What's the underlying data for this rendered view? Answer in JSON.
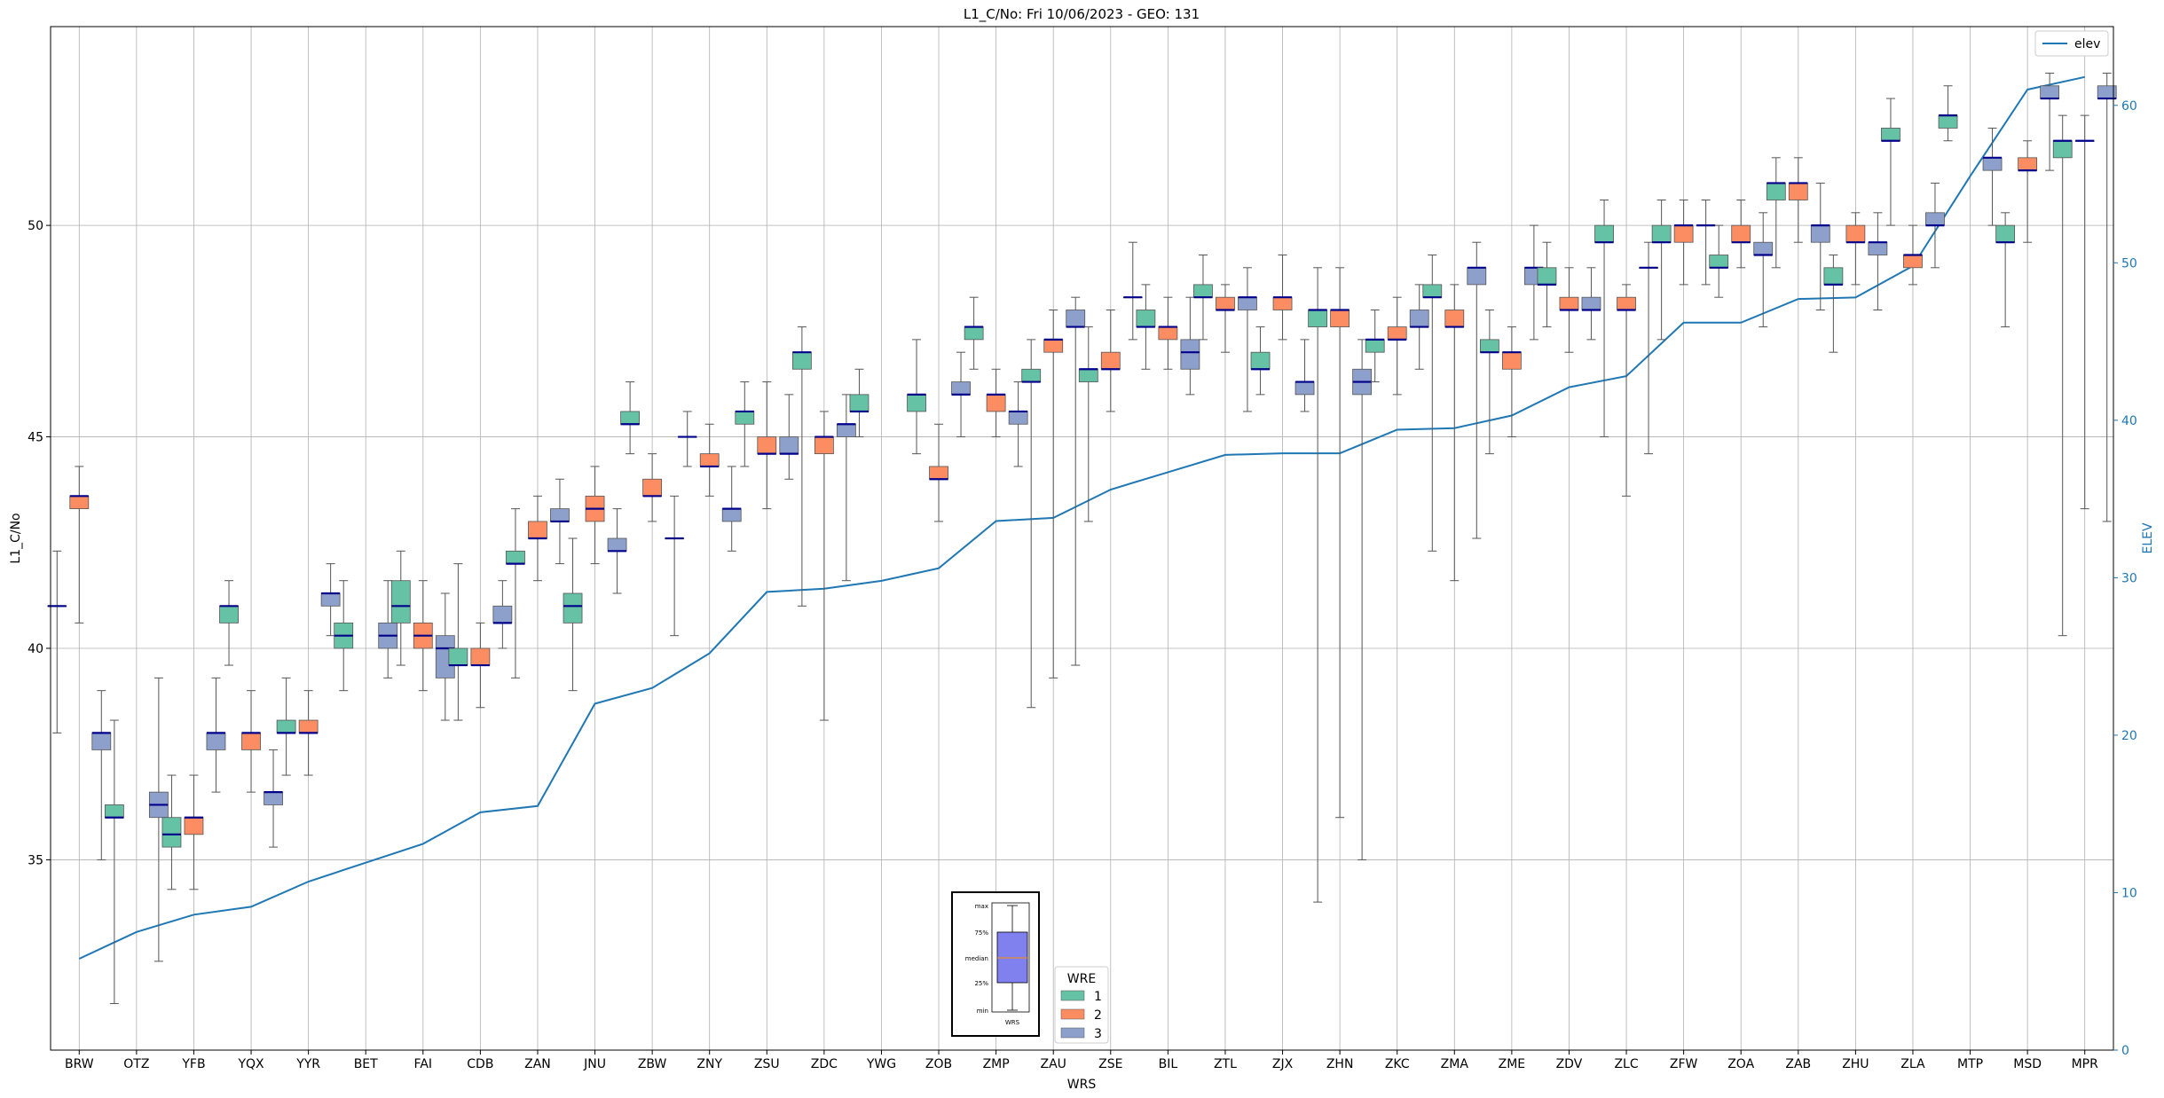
{
  "chart_data": {
    "type": "box",
    "title": "L1_C/No: Fri 10/06/2023 - GEO: 131",
    "xlabel": "WRS",
    "ylabel": "L1_C/No",
    "y2label": "ELEV",
    "ylim": [
      30.5,
      54.7
    ],
    "y2lim": [
      0,
      65
    ],
    "yticks": [
      35,
      40,
      45,
      50
    ],
    "y2ticks": [
      0,
      10,
      20,
      30,
      40,
      50,
      60
    ],
    "grid": true,
    "legend_placement": "top-right",
    "categories": [
      "BRW",
      "OTZ",
      "YFB",
      "YQX",
      "YYR",
      "BET",
      "FAI",
      "CDB",
      "ZAN",
      "JNU",
      "ZBW",
      "ZNY",
      "ZSU",
      "ZDC",
      "YWG",
      "ZOB",
      "ZMP",
      "ZAU",
      "ZSE",
      "BIL",
      "ZTL",
      "ZJX",
      "ZHN",
      "ZKC",
      "ZMA",
      "ZME",
      "ZDV",
      "ZLC",
      "ZFW",
      "ZOA",
      "ZAB",
      "ZHU",
      "ZLA",
      "MTP",
      "MSD",
      "MPR"
    ],
    "colors": {
      "1": "#66c2a5",
      "2": "#fc8d62",
      "3": "#8da0cb",
      "median": "#00008b",
      "elev": "#1f77b4",
      "whisker": "#555555"
    },
    "wre_legend": {
      "title": "WRE",
      "entries": [
        "1",
        "2",
        "3"
      ]
    },
    "elev_legend": {
      "entries": [
        "elev"
      ]
    },
    "inset": {
      "labels": [
        "max",
        "75%",
        "median",
        "25%",
        "min"
      ],
      "xlabel": "WRS"
    },
    "elev": [
      5.8,
      7.5,
      8.6,
      9.1,
      10.7,
      11.9,
      13.1,
      15.1,
      15.5,
      22.0,
      23.0,
      25.2,
      29.1,
      29.3,
      29.8,
      30.6,
      33.6,
      33.8,
      35.6,
      36.7,
      37.8,
      37.9,
      37.9,
      39.4,
      39.5,
      40.3,
      42.1,
      42.8,
      46.2,
      46.2,
      47.7,
      47.8,
      49.8,
      55.5,
      61.0,
      61.8
    ],
    "boxes": [
      {
        "cat": "BRW",
        "wre": 1,
        "min": 38.0,
        "q1": 41.0,
        "median": 41.0,
        "q3": 41.0,
        "max": 42.3
      },
      {
        "cat": "BRW",
        "wre": 2,
        "min": 40.6,
        "q1": 43.3,
        "median": 43.6,
        "q3": 43.6,
        "max": 44.3
      },
      {
        "cat": "BRW",
        "wre": 3,
        "min": 35.0,
        "q1": 37.6,
        "median": 38.0,
        "q3": 38.0,
        "max": 39.0
      },
      {
        "cat": "OTZ",
        "wre": 1,
        "min": 31.6,
        "q1": 36.0,
        "median": 36.0,
        "q3": 36.3,
        "max": 38.3
      },
      {
        "cat": "OTZ",
        "wre": 3,
        "min": 32.6,
        "q1": 36.0,
        "median": 36.3,
        "q3": 36.6,
        "max": 39.3
      },
      {
        "cat": "YFB",
        "wre": 1,
        "min": 34.3,
        "q1": 35.3,
        "median": 35.6,
        "q3": 36.0,
        "max": 37.0
      },
      {
        "cat": "YFB",
        "wre": 2,
        "min": 34.3,
        "q1": 35.6,
        "median": 36.0,
        "q3": 36.0,
        "max": 37.0
      },
      {
        "cat": "YFB",
        "wre": 3,
        "min": 36.6,
        "q1": 37.6,
        "median": 38.0,
        "q3": 38.0,
        "max": 39.3
      },
      {
        "cat": "YQX",
        "wre": 1,
        "min": 39.6,
        "q1": 40.6,
        "median": 41.0,
        "q3": 41.0,
        "max": 41.6
      },
      {
        "cat": "YQX",
        "wre": 2,
        "min": 36.6,
        "q1": 37.6,
        "median": 38.0,
        "q3": 38.0,
        "max": 39.0
      },
      {
        "cat": "YQX",
        "wre": 3,
        "min": 35.3,
        "q1": 36.3,
        "median": 36.6,
        "q3": 36.6,
        "max": 37.6
      },
      {
        "cat": "YYR",
        "wre": 1,
        "min": 37.0,
        "q1": 38.0,
        "median": 38.0,
        "q3": 38.3,
        "max": 39.3
      },
      {
        "cat": "YYR",
        "wre": 2,
        "min": 37.0,
        "q1": 38.0,
        "median": 38.0,
        "q3": 38.3,
        "max": 39.0
      },
      {
        "cat": "YYR",
        "wre": 3,
        "min": 40.3,
        "q1": 41.0,
        "median": 41.3,
        "q3": 41.3,
        "max": 42.0
      },
      {
        "cat": "BET",
        "wre": 1,
        "min": 39.0,
        "q1": 40.0,
        "median": 40.3,
        "q3": 40.6,
        "max": 41.6
      },
      {
        "cat": "BET",
        "wre": 3,
        "min": 39.3,
        "q1": 40.0,
        "median": 40.3,
        "q3": 40.6,
        "max": 41.6
      },
      {
        "cat": "FAI",
        "wre": 1,
        "min": 39.6,
        "q1": 40.6,
        "median": 41.0,
        "q3": 41.6,
        "max": 42.3
      },
      {
        "cat": "FAI",
        "wre": 2,
        "min": 39.0,
        "q1": 40.0,
        "median": 40.3,
        "q3": 40.6,
        "max": 41.6
      },
      {
        "cat": "FAI",
        "wre": 3,
        "min": 38.3,
        "q1": 39.3,
        "median": 40.0,
        "q3": 40.3,
        "max": 41.3
      },
      {
        "cat": "CDB",
        "wre": 1,
        "min": 38.3,
        "q1": 39.6,
        "median": 39.6,
        "q3": 40.0,
        "max": 42.0
      },
      {
        "cat": "CDB",
        "wre": 2,
        "min": 38.6,
        "q1": 39.6,
        "median": 39.6,
        "q3": 40.0,
        "max": 40.6
      },
      {
        "cat": "CDB",
        "wre": 3,
        "min": 40.0,
        "q1": 40.6,
        "median": 40.6,
        "q3": 41.0,
        "max": 41.6
      },
      {
        "cat": "ZAN",
        "wre": 1,
        "min": 39.3,
        "q1": 42.0,
        "median": 42.0,
        "q3": 42.3,
        "max": 43.3
      },
      {
        "cat": "ZAN",
        "wre": 2,
        "min": 41.6,
        "q1": 42.6,
        "median": 42.6,
        "q3": 43.0,
        "max": 43.6
      },
      {
        "cat": "ZAN",
        "wre": 3,
        "min": 42.0,
        "q1": 43.0,
        "median": 43.0,
        "q3": 43.3,
        "max": 44.0
      },
      {
        "cat": "JNU",
        "wre": 1,
        "min": 39.0,
        "q1": 40.6,
        "median": 41.0,
        "q3": 41.3,
        "max": 42.6
      },
      {
        "cat": "JNU",
        "wre": 2,
        "min": 42.0,
        "q1": 43.0,
        "median": 43.3,
        "q3": 43.6,
        "max": 44.3
      },
      {
        "cat": "JNU",
        "wre": 3,
        "min": 41.3,
        "q1": 42.3,
        "median": 42.3,
        "q3": 42.6,
        "max": 43.3
      },
      {
        "cat": "ZBW",
        "wre": 1,
        "min": 44.6,
        "q1": 45.3,
        "median": 45.3,
        "q3": 45.6,
        "max": 46.3
      },
      {
        "cat": "ZBW",
        "wre": 2,
        "min": 43.0,
        "q1": 43.6,
        "median": 43.6,
        "q3": 44.0,
        "max": 44.6
      },
      {
        "cat": "ZBW",
        "wre": 3,
        "min": 40.3,
        "q1": 42.6,
        "median": 42.6,
        "q3": 42.6,
        "max": 43.6
      },
      {
        "cat": "ZNY",
        "wre": 1,
        "min": 44.3,
        "q1": 45.0,
        "median": 45.0,
        "q3": 45.0,
        "max": 45.6
      },
      {
        "cat": "ZNY",
        "wre": 2,
        "min": 43.6,
        "q1": 44.3,
        "median": 44.3,
        "q3": 44.6,
        "max": 45.3
      },
      {
        "cat": "ZNY",
        "wre": 3,
        "min": 42.3,
        "q1": 43.0,
        "median": 43.3,
        "q3": 43.3,
        "max": 44.3
      },
      {
        "cat": "ZSU",
        "wre": 1,
        "min": 44.3,
        "q1": 45.3,
        "median": 45.6,
        "q3": 45.6,
        "max": 46.3
      },
      {
        "cat": "ZSU",
        "wre": 2,
        "min": 43.3,
        "q1": 44.6,
        "median": 44.6,
        "q3": 45.0,
        "max": 46.3
      },
      {
        "cat": "ZSU",
        "wre": 3,
        "min": 44.0,
        "q1": 44.6,
        "median": 44.6,
        "q3": 45.0,
        "max": 46.0
      },
      {
        "cat": "ZDC",
        "wre": 1,
        "min": 41.0,
        "q1": 46.6,
        "median": 47.0,
        "q3": 47.0,
        "max": 47.6
      },
      {
        "cat": "ZDC",
        "wre": 2,
        "min": 38.3,
        "q1": 44.6,
        "median": 45.0,
        "q3": 45.0,
        "max": 45.6
      },
      {
        "cat": "ZDC",
        "wre": 3,
        "min": 41.6,
        "q1": 45.0,
        "median": 45.3,
        "q3": 45.3,
        "max": 46.0
      },
      {
        "cat": "YWG",
        "wre": 1,
        "min": 45.0,
        "q1": 45.6,
        "median": 45.6,
        "q3": 46.0,
        "max": 46.6
      },
      {
        "cat": "ZOB",
        "wre": 1,
        "min": 44.6,
        "q1": 45.6,
        "median": 46.0,
        "q3": 46.0,
        "max": 47.3
      },
      {
        "cat": "ZOB",
        "wre": 2,
        "min": 43.0,
        "q1": 44.0,
        "median": 44.0,
        "q3": 44.3,
        "max": 45.3
      },
      {
        "cat": "ZOB",
        "wre": 3,
        "min": 45.0,
        "q1": 46.0,
        "median": 46.0,
        "q3": 46.3,
        "max": 47.0
      },
      {
        "cat": "ZMP",
        "wre": 1,
        "min": 46.6,
        "q1": 47.3,
        "median": 47.6,
        "q3": 47.6,
        "max": 48.3
      },
      {
        "cat": "ZMP",
        "wre": 2,
        "min": 45.0,
        "q1": 45.6,
        "median": 46.0,
        "q3": 46.0,
        "max": 46.6
      },
      {
        "cat": "ZMP",
        "wre": 3,
        "min": 44.3,
        "q1": 45.3,
        "median": 45.6,
        "q3": 45.6,
        "max": 46.3
      },
      {
        "cat": "ZAU",
        "wre": 1,
        "min": 38.6,
        "q1": 46.3,
        "median": 46.3,
        "q3": 46.6,
        "max": 47.3
      },
      {
        "cat": "ZAU",
        "wre": 2,
        "min": 39.3,
        "q1": 47.0,
        "median": 47.3,
        "q3": 47.3,
        "max": 48.0
      },
      {
        "cat": "ZAU",
        "wre": 3,
        "min": 39.6,
        "q1": 47.6,
        "median": 47.6,
        "q3": 48.0,
        "max": 48.3
      },
      {
        "cat": "ZSE",
        "wre": 1,
        "min": 43.0,
        "q1": 46.3,
        "median": 46.6,
        "q3": 46.6,
        "max": 47.6
      },
      {
        "cat": "ZSE",
        "wre": 2,
        "min": 45.6,
        "q1": 46.6,
        "median": 46.6,
        "q3": 47.0,
        "max": 48.0
      },
      {
        "cat": "ZSE",
        "wre": 3,
        "min": 47.3,
        "q1": 48.3,
        "median": 48.3,
        "q3": 48.3,
        "max": 49.6
      },
      {
        "cat": "BIL",
        "wre": 1,
        "min": 46.6,
        "q1": 47.6,
        "median": 47.6,
        "q3": 48.0,
        "max": 48.6
      },
      {
        "cat": "BIL",
        "wre": 2,
        "min": 46.6,
        "q1": 47.3,
        "median": 47.6,
        "q3": 47.6,
        "max": 48.3
      },
      {
        "cat": "BIL",
        "wre": 3,
        "min": 46.0,
        "q1": 46.6,
        "median": 47.0,
        "q3": 47.3,
        "max": 48.3
      },
      {
        "cat": "ZTL",
        "wre": 1,
        "min": 47.3,
        "q1": 48.3,
        "median": 48.3,
        "q3": 48.6,
        "max": 49.3
      },
      {
        "cat": "ZTL",
        "wre": 2,
        "min": 47.0,
        "q1": 48.0,
        "median": 48.0,
        "q3": 48.3,
        "max": 48.6
      },
      {
        "cat": "ZTL",
        "wre": 3,
        "min": 45.6,
        "q1": 48.0,
        "median": 48.3,
        "q3": 48.3,
        "max": 49.0
      },
      {
        "cat": "ZJX",
        "wre": 1,
        "min": 46.0,
        "q1": 46.6,
        "median": 46.6,
        "q3": 47.0,
        "max": 47.6
      },
      {
        "cat": "ZJX",
        "wre": 2,
        "min": 47.3,
        "q1": 48.0,
        "median": 48.3,
        "q3": 48.3,
        "max": 49.3
      },
      {
        "cat": "ZJX",
        "wre": 3,
        "min": 45.6,
        "q1": 46.0,
        "median": 46.3,
        "q3": 46.3,
        "max": 47.3
      },
      {
        "cat": "ZHN",
        "wre": 1,
        "min": 34.0,
        "q1": 47.6,
        "median": 48.0,
        "q3": 48.0,
        "max": 49.0
      },
      {
        "cat": "ZHN",
        "wre": 2,
        "min": 36.0,
        "q1": 47.6,
        "median": 48.0,
        "q3": 48.0,
        "max": 49.0
      },
      {
        "cat": "ZHN",
        "wre": 3,
        "min": 35.0,
        "q1": 46.0,
        "median": 46.3,
        "q3": 46.6,
        "max": 47.3
      },
      {
        "cat": "ZKC",
        "wre": 1,
        "min": 46.3,
        "q1": 47.0,
        "median": 47.3,
        "q3": 47.3,
        "max": 48.0
      },
      {
        "cat": "ZKC",
        "wre": 2,
        "min": 46.0,
        "q1": 47.3,
        "median": 47.3,
        "q3": 47.6,
        "max": 48.3
      },
      {
        "cat": "ZKC",
        "wre": 3,
        "min": 46.6,
        "q1": 47.6,
        "median": 47.6,
        "q3": 48.0,
        "max": 48.6
      },
      {
        "cat": "ZMA",
        "wre": 1,
        "min": 42.3,
        "q1": 48.3,
        "median": 48.3,
        "q3": 48.6,
        "max": 49.3
      },
      {
        "cat": "ZMA",
        "wre": 2,
        "min": 41.6,
        "q1": 47.6,
        "median": 47.6,
        "q3": 48.0,
        "max": 48.6
      },
      {
        "cat": "ZMA",
        "wre": 3,
        "min": 42.6,
        "q1": 48.6,
        "median": 49.0,
        "q3": 49.0,
        "max": 49.6
      },
      {
        "cat": "ZME",
        "wre": 1,
        "min": 44.6,
        "q1": 47.0,
        "median": 47.0,
        "q3": 47.3,
        "max": 48.0
      },
      {
        "cat": "ZME",
        "wre": 2,
        "min": 45.0,
        "q1": 46.6,
        "median": 47.0,
        "q3": 47.0,
        "max": 47.6
      },
      {
        "cat": "ZME",
        "wre": 3,
        "min": 47.3,
        "q1": 48.6,
        "median": 49.0,
        "q3": 49.0,
        "max": 50.0
      },
      {
        "cat": "ZDV",
        "wre": 1,
        "min": 47.6,
        "q1": 48.6,
        "median": 48.6,
        "q3": 49.0,
        "max": 49.6
      },
      {
        "cat": "ZDV",
        "wre": 2,
        "min": 47.0,
        "q1": 48.0,
        "median": 48.0,
        "q3": 48.3,
        "max": 49.0
      },
      {
        "cat": "ZDV",
        "wre": 3,
        "min": 47.3,
        "q1": 48.0,
        "median": 48.0,
        "q3": 48.3,
        "max": 49.0
      },
      {
        "cat": "ZLC",
        "wre": 1,
        "min": 45.0,
        "q1": 49.6,
        "median": 49.6,
        "q3": 50.0,
        "max": 50.6
      },
      {
        "cat": "ZLC",
        "wre": 2,
        "min": 43.6,
        "q1": 48.0,
        "median": 48.0,
        "q3": 48.3,
        "max": 48.6
      },
      {
        "cat": "ZLC",
        "wre": 3,
        "min": 44.6,
        "q1": 49.0,
        "median": 49.0,
        "q3": 49.0,
        "max": 49.6
      },
      {
        "cat": "ZFW",
        "wre": 1,
        "min": 47.3,
        "q1": 49.6,
        "median": 49.6,
        "q3": 50.0,
        "max": 50.6
      },
      {
        "cat": "ZFW",
        "wre": 2,
        "min": 48.6,
        "q1": 49.6,
        "median": 50.0,
        "q3": 50.0,
        "max": 50.6
      },
      {
        "cat": "ZFW",
        "wre": 3,
        "min": 48.6,
        "q1": 50.0,
        "median": 50.0,
        "q3": 50.0,
        "max": 50.6
      },
      {
        "cat": "ZOA",
        "wre": 1,
        "min": 48.3,
        "q1": 49.0,
        "median": 49.0,
        "q3": 49.3,
        "max": 50.0
      },
      {
        "cat": "ZOA",
        "wre": 2,
        "min": 49.0,
        "q1": 49.6,
        "median": 49.6,
        "q3": 50.0,
        "max": 50.6
      },
      {
        "cat": "ZOA",
        "wre": 3,
        "min": 47.6,
        "q1": 49.3,
        "median": 49.3,
        "q3": 49.6,
        "max": 50.3
      },
      {
        "cat": "ZAB",
        "wre": 1,
        "min": 49.0,
        "q1": 50.6,
        "median": 51.0,
        "q3": 51.0,
        "max": 51.6
      },
      {
        "cat": "ZAB",
        "wre": 2,
        "min": 49.6,
        "q1": 50.6,
        "median": 51.0,
        "q3": 51.0,
        "max": 51.6
      },
      {
        "cat": "ZAB",
        "wre": 3,
        "min": 48.0,
        "q1": 49.6,
        "median": 50.0,
        "q3": 50.0,
        "max": 51.0
      },
      {
        "cat": "ZHU",
        "wre": 1,
        "min": 47.0,
        "q1": 48.6,
        "median": 48.6,
        "q3": 49.0,
        "max": 49.3
      },
      {
        "cat": "ZHU",
        "wre": 2,
        "min": 48.6,
        "q1": 49.6,
        "median": 49.6,
        "q3": 50.0,
        "max": 50.3
      },
      {
        "cat": "ZHU",
        "wre": 3,
        "min": 48.0,
        "q1": 49.3,
        "median": 49.6,
        "q3": 49.6,
        "max": 50.3
      },
      {
        "cat": "ZLA",
        "wre": 1,
        "min": 50.0,
        "q1": 52.0,
        "median": 52.0,
        "q3": 52.3,
        "max": 53.0
      },
      {
        "cat": "ZLA",
        "wre": 2,
        "min": 48.6,
        "q1": 49.0,
        "median": 49.3,
        "q3": 49.3,
        "max": 50.0
      },
      {
        "cat": "ZLA",
        "wre": 3,
        "min": 49.0,
        "q1": 50.0,
        "median": 50.0,
        "q3": 50.3,
        "max": 51.0
      },
      {
        "cat": "MTP",
        "wre": 1,
        "min": 52.0,
        "q1": 52.3,
        "median": 52.6,
        "q3": 52.6,
        "max": 53.3
      },
      {
        "cat": "MTP",
        "wre": 3,
        "min": 50.0,
        "q1": 51.3,
        "median": 51.6,
        "q3": 51.6,
        "max": 52.3
      },
      {
        "cat": "MSD",
        "wre": 1,
        "min": 47.6,
        "q1": 49.6,
        "median": 49.6,
        "q3": 50.0,
        "max": 50.3
      },
      {
        "cat": "MSD",
        "wre": 2,
        "min": 49.6,
        "q1": 51.3,
        "median": 51.3,
        "q3": 51.6,
        "max": 52.0
      },
      {
        "cat": "MSD",
        "wre": 3,
        "min": 51.3,
        "q1": 53.0,
        "median": 53.0,
        "q3": 53.3,
        "max": 53.6
      },
      {
        "cat": "MPR",
        "wre": 1,
        "min": 40.3,
        "q1": 51.6,
        "median": 52.0,
        "q3": 52.0,
        "max": 52.6
      },
      {
        "cat": "MPR",
        "wre": 2,
        "min": 43.3,
        "q1": 52.0,
        "median": 52.0,
        "q3": 52.0,
        "max": 52.6
      },
      {
        "cat": "MPR",
        "wre": 3,
        "min": 43.0,
        "q1": 53.0,
        "median": 53.0,
        "q3": 53.3,
        "max": 53.6
      }
    ]
  }
}
